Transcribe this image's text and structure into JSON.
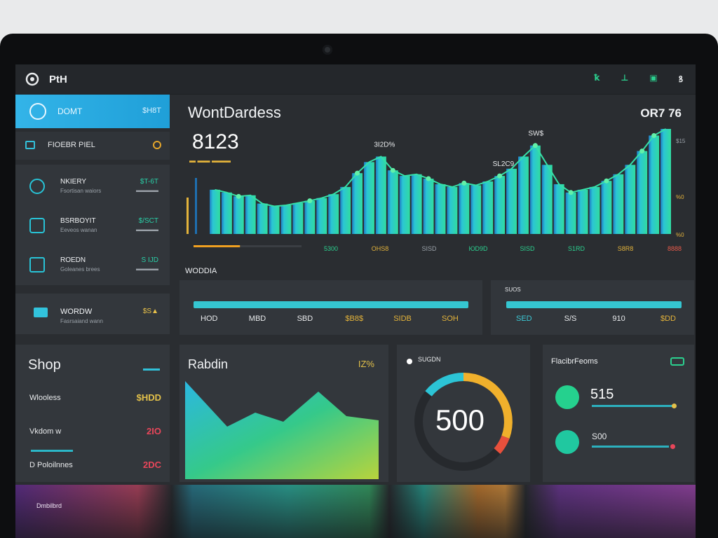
{
  "app": {
    "title": "PtH"
  },
  "topbar": {
    "icons": [
      {
        "name": "chart-icon",
        "glyph": "ꝁ",
        "color": "#2bd08f"
      },
      {
        "name": "tool-icon",
        "glyph": "⊥",
        "color": "#2bd08f"
      },
      {
        "name": "box-icon",
        "glyph": "▣",
        "color": "#2bd08f"
      },
      {
        "name": "user-icon",
        "glyph": "ꝸ",
        "color": "#e8eaec"
      }
    ]
  },
  "sidebar": {
    "active": {
      "label": "DOMT",
      "value": "$H8T"
    },
    "item2": {
      "label": "FIOEBR PIEL"
    },
    "rows": [
      {
        "name": "NKIERY",
        "sub": "Fsortisan waiors",
        "amount": "$T-6T",
        "amount2": "▬▬▬▬"
      },
      {
        "name": "BSRBOYIT",
        "sub": "Eeveos wanan",
        "amount": "$/SCT",
        "amount2": "▬▬▬▬"
      },
      {
        "name": "ROEDN",
        "sub": "Goleanes brees",
        "amount": "S IJD",
        "amount2": "▬▬▬▬"
      }
    ],
    "item4": {
      "label": "WORDW",
      "sub": "Fasrsaiand wann",
      "amount": "$S▲"
    }
  },
  "main": {
    "title": "WontDardess",
    "value": "8123",
    "sub_legend": "▬  ▬▬ ▬▬▬",
    "right_value": "OR7 76",
    "annotations": [
      "3I2D%",
      "SW$",
      "SL2C9"
    ],
    "x_ticks": [
      "5300",
      "OHS8",
      "SISD",
      "ЮD9D",
      "SISD",
      "S1RD",
      "S8R8",
      "8888"
    ],
    "y_ticks": [
      "$15",
      "%0",
      "%0"
    ],
    "progress": 0.43
  },
  "chart_data": {
    "type": "bar",
    "title": "WontDardess",
    "xlabel": "",
    "ylabel": "",
    "values": [
      80,
      75,
      68,
      70,
      55,
      50,
      52,
      56,
      60,
      65,
      72,
      85,
      110,
      130,
      140,
      115,
      105,
      108,
      100,
      90,
      85,
      92,
      88,
      95,
      105,
      118,
      140,
      160,
      125,
      90,
      75,
      80,
      85,
      96,
      108,
      125,
      150,
      178,
      190
    ],
    "line_points": [
      2,
      8,
      12,
      15,
      18,
      21,
      24,
      27,
      30,
      33,
      36,
      37
    ],
    "annotations": [
      {
        "text": "3I2D%",
        "index": 14
      },
      {
        "text": "SW$",
        "index": 27
      },
      {
        "text": "SL2C9",
        "index": 24
      }
    ]
  },
  "section": {
    "label": "WODDIA"
  },
  "bar_card1": {
    "ticks": [
      {
        "text": "HOD",
        "color": "#e8eaec"
      },
      {
        "text": "MBD",
        "color": "#e8eaec"
      },
      {
        "text": "SBD",
        "color": "#e8eaec"
      },
      {
        "text": "$B8$",
        "color": "#e3b33b"
      },
      {
        "text": "SIDB",
        "color": "#e3b33b"
      },
      {
        "text": "SOH",
        "color": "#e3b33b"
      }
    ]
  },
  "bar_card2": {
    "label": "SUOS",
    "ticks": [
      {
        "text": "SED",
        "color": "#3cc9d6"
      },
      {
        "text": "S/S",
        "color": "#e8eaec"
      },
      {
        "text": "910",
        "color": "#e8eaec"
      },
      {
        "text": "$DD",
        "color": "#e3b33b"
      }
    ]
  },
  "shop": {
    "title": "Shop",
    "rows": [
      {
        "label": "Wlooless",
        "amount": "$HDD",
        "color": "#e3c14a"
      },
      {
        "label": "Vkdom w",
        "amount": "2IO",
        "color": "#e8465a"
      },
      {
        "label": "D Poloilnnes",
        "amount": "2DC",
        "color": "#e8465a"
      }
    ]
  },
  "area": {
    "title": "Rabdin",
    "pct": "IZ%"
  },
  "gauge": {
    "label": "SUGDN",
    "value": "500"
  },
  "rf": {
    "title": "FlacibrFeoms",
    "rows": [
      {
        "value": "515",
        "suffix": "▾"
      },
      {
        "value": "S00",
        "suffix": "▾"
      }
    ]
  },
  "footer": {
    "label": "Dmbilbrd"
  }
}
